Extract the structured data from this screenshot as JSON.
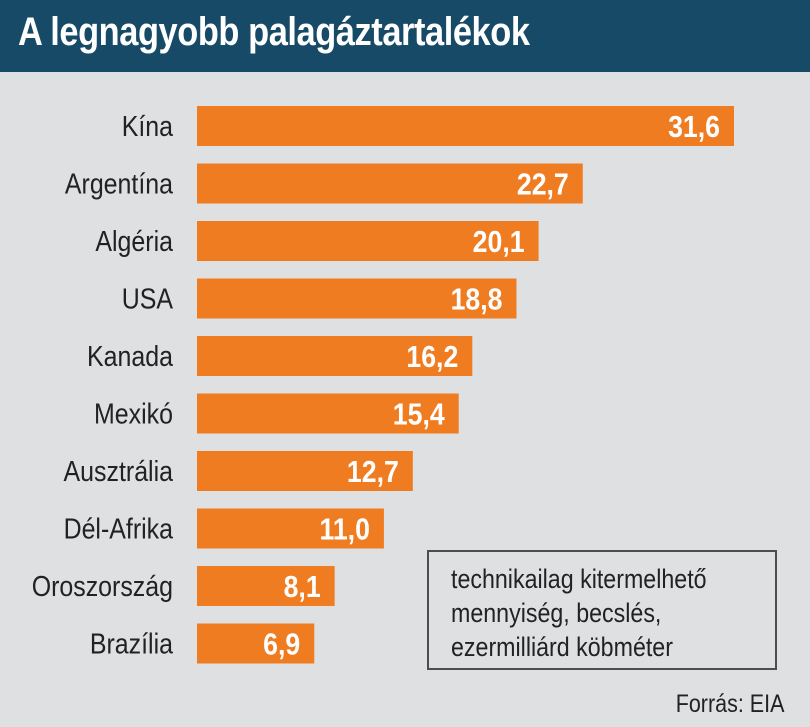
{
  "title": "A legnagyobb palagáztartalékok",
  "legend": {
    "lines": [
      "technikailag kitermelhető",
      "mennyiség, becslés,",
      "ezermilliárd köbméter"
    ]
  },
  "source": "Forrás: EIA",
  "colors": {
    "bar": "#f07c22",
    "header": "#174a66",
    "background": "#dfe0e1"
  },
  "chart_data": {
    "type": "bar",
    "orientation": "horizontal",
    "title": "A legnagyobb palagáztartalékok",
    "categories": [
      "Kína",
      "Argentína",
      "Algéria",
      "USA",
      "Kanada",
      "Mexikó",
      "Ausztrália",
      "Dél-Afrika",
      "Oroszország",
      "Brazília"
    ],
    "values": [
      31.6,
      22.7,
      20.1,
      18.8,
      16.2,
      15.4,
      12.7,
      11.0,
      8.1,
      6.9
    ],
    "labels": [
      "31,6",
      "22,7",
      "20,1",
      "18,8",
      "16,2",
      "15,4",
      "12,7",
      "11,0",
      "8,1",
      "6,9"
    ],
    "xlabel": "",
    "ylabel": "",
    "grid": false
  }
}
